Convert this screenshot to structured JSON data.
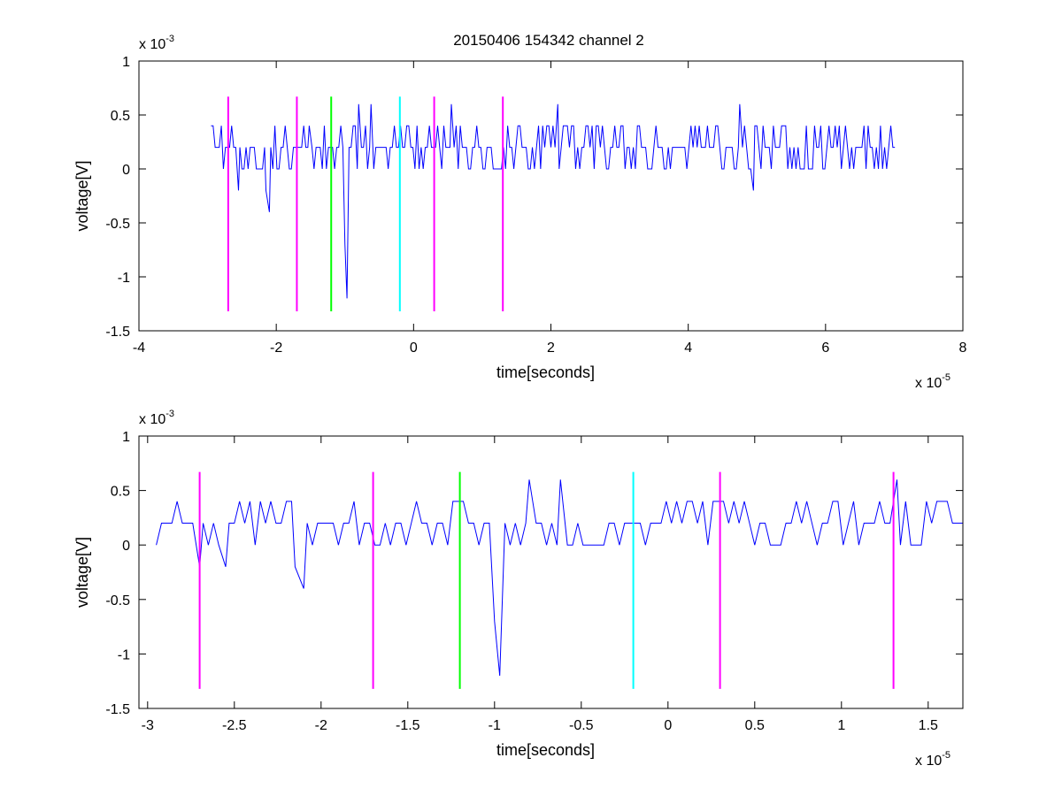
{
  "figure_title": "20150406 154342 channel 2",
  "colors": {
    "signal": "#0000ff",
    "marker_magenta": "#ff00ff",
    "marker_green": "#00ff00",
    "marker_cyan": "#00ffff"
  },
  "chart_data": [
    {
      "type": "line",
      "title": "20150406 154342 channel 2",
      "xlabel": "time[seconds]",
      "ylabel": "voltage[V]",
      "x_exponent_label": "x 10",
      "x_exponent": "-5",
      "y_exponent_label": "x 10",
      "y_exponent": "-3",
      "xlim": [
        -4,
        8
      ],
      "ylim": [
        -1.5,
        1
      ],
      "x_ticks": [
        -4,
        -2,
        0,
        2,
        4,
        6,
        8
      ],
      "x_tick_labels": [
        "-4",
        "-2",
        "0",
        "2",
        "4",
        "6",
        "8"
      ],
      "y_ticks": [
        -1.5,
        -1,
        -0.5,
        0,
        0.5,
        1
      ],
      "y_tick_labels": [
        "-1.5",
        "-1",
        "-0.5",
        "0",
        "0.5",
        "1"
      ],
      "grid": false,
      "series": [
        {
          "color": "#0000ff",
          "x_range": [
            -2.95,
            7.02
          ],
          "baseline": 0.2,
          "levels": [
            0,
            0.2,
            0.4
          ],
          "features": [
            {
              "x": -2.55,
              "y": -0.2
            },
            {
              "x": -2.15,
              "y": -0.2
            },
            {
              "x": -2.1,
              "y": -0.4
            },
            {
              "x": -1.52,
              "y": 0.4
            },
            {
              "x": -1.0,
              "y": -0.7
            },
            {
              "x": -0.97,
              "y": -1.2
            },
            {
              "x": -0.8,
              "y": 0.6
            },
            {
              "x": -0.62,
              "y": 0.6
            },
            {
              "x": 0.55,
              "y": 0.6
            },
            {
              "x": 2.1,
              "y": 0.6
            },
            {
              "x": 4.75,
              "y": 0.6
            },
            {
              "x": 4.95,
              "y": -0.2
            }
          ]
        }
      ],
      "markers": [
        {
          "x": -2.7,
          "color": "#ff00ff",
          "y_range": [
            -1.32,
            0.67
          ]
        },
        {
          "x": -1.7,
          "color": "#ff00ff",
          "y_range": [
            -1.32,
            0.67
          ]
        },
        {
          "x": -1.2,
          "color": "#00ff00",
          "y_range": [
            -1.32,
            0.67
          ]
        },
        {
          "x": -0.2,
          "color": "#00ffff",
          "y_range": [
            -1.32,
            0.67
          ]
        },
        {
          "x": 0.3,
          "color": "#ff00ff",
          "y_range": [
            -1.32,
            0.67
          ]
        },
        {
          "x": 1.3,
          "color": "#ff00ff",
          "y_range": [
            -1.32,
            0.67
          ]
        }
      ]
    },
    {
      "type": "line",
      "title": "",
      "xlabel": "time[seconds]",
      "ylabel": "voltage[V]",
      "x_exponent_label": "x 10",
      "x_exponent": "-5",
      "y_exponent_label": "x 10",
      "y_exponent": "-3",
      "xlim": [
        -3.05,
        1.7
      ],
      "ylim": [
        -1.5,
        1
      ],
      "x_ticks": [
        -3,
        -2.5,
        -2,
        -1.5,
        -1,
        -0.5,
        0,
        0.5,
        1,
        1.5
      ],
      "x_tick_labels": [
        "-3",
        "-2.5",
        "-2",
        "-1.5",
        "-1",
        "-0.5",
        "0",
        "0.5",
        "1",
        "1.5"
      ],
      "y_ticks": [
        -1.5,
        -1,
        -0.5,
        0,
        0.5,
        1
      ],
      "y_tick_labels": [
        "-1.5",
        "-1",
        "-0.5",
        "0",
        "0.5",
        "1"
      ],
      "grid": false,
      "series": [
        {
          "color": "#0000ff",
          "x_range": [
            -2.95,
            1.7
          ],
          "baseline": 0.2,
          "levels": [
            0,
            0.2,
            0.4
          ],
          "features": [
            {
              "x": -2.7,
              "y": -0.2
            },
            {
              "x": -2.55,
              "y": -0.2
            },
            {
              "x": -2.15,
              "y": -0.2
            },
            {
              "x": -2.1,
              "y": -0.4
            },
            {
              "x": -1.0,
              "y": -0.7
            },
            {
              "x": -0.97,
              "y": -1.2
            },
            {
              "x": -0.8,
              "y": 0.6
            },
            {
              "x": -0.62,
              "y": 0.6
            },
            {
              "x": 1.32,
              "y": 0.6
            }
          ]
        }
      ],
      "markers": [
        {
          "x": -2.7,
          "color": "#ff00ff",
          "y_range": [
            -1.32,
            0.67
          ]
        },
        {
          "x": -1.7,
          "color": "#ff00ff",
          "y_range": [
            -1.32,
            0.67
          ]
        },
        {
          "x": -1.2,
          "color": "#00ff00",
          "y_range": [
            -1.32,
            0.67
          ]
        },
        {
          "x": -0.2,
          "color": "#00ffff",
          "y_range": [
            -1.32,
            0.67
          ]
        },
        {
          "x": 0.3,
          "color": "#ff00ff",
          "y_range": [
            -1.32,
            0.67
          ]
        },
        {
          "x": 1.3,
          "color": "#ff00ff",
          "y_range": [
            -1.32,
            0.67
          ]
        }
      ]
    }
  ]
}
